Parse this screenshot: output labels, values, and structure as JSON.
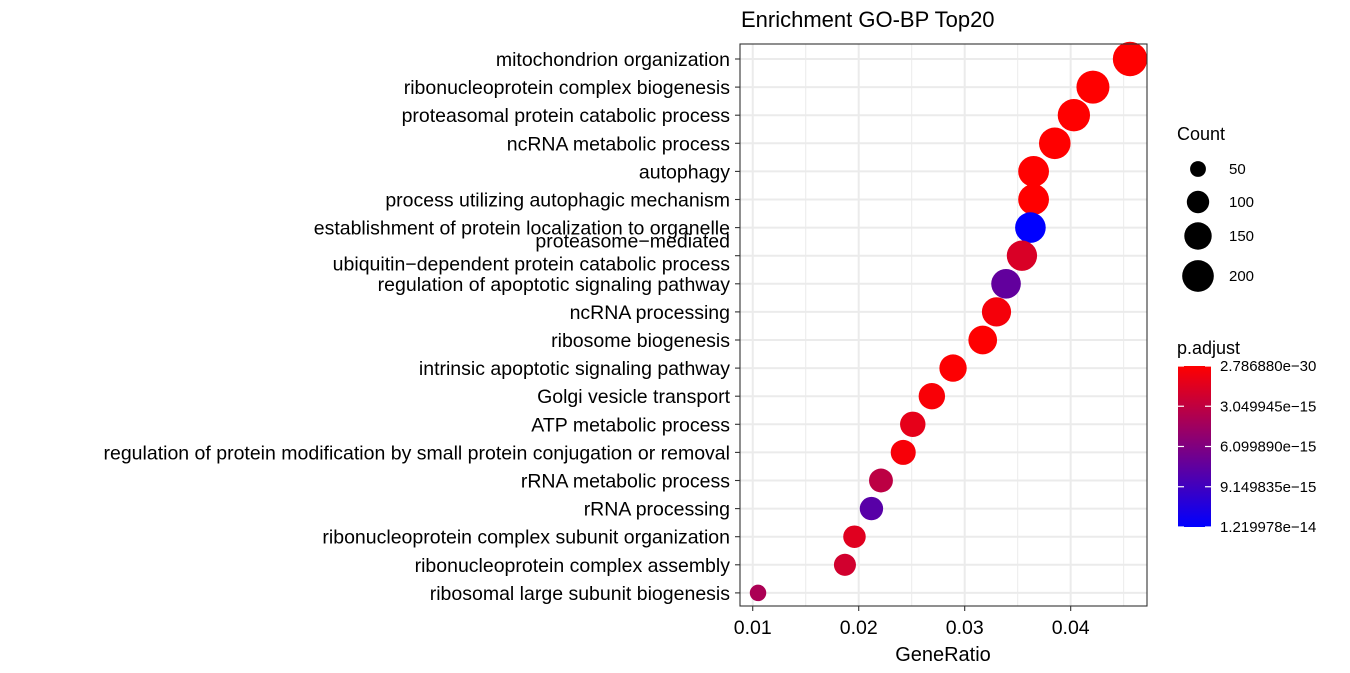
{
  "chart_data": {
    "type": "scatter",
    "title": "Enrichment GO-BP Top20",
    "xlabel": "GeneRatio",
    "ylabel": "",
    "xlim": [
      0.0088,
      0.0472
    ],
    "xticks": [
      "0.01",
      "0.02",
      "0.03",
      "0.04"
    ],
    "grid": true,
    "legend_position": "right",
    "categories": [
      "mitochondrion organization",
      "ribonucleoprotein complex biogenesis",
      "proteasomal protein catabolic process",
      "ncRNA metabolic process",
      "autophagy",
      "process utilizing autophagic mechanism",
      "establishment of protein localization to organelle",
      "proteasome−mediated\nubiquitin−dependent protein catabolic process",
      "regulation of apoptotic signaling pathway",
      "ncRNA processing",
      "ribosome biogenesis",
      "intrinsic apoptotic signaling pathway",
      "Golgi vesicle transport",
      "ATP metabolic process",
      "regulation of protein modification by small protein conjugation or removal",
      "rRNA metabolic process",
      "rRNA processing",
      "ribonucleoprotein complex subunit organization",
      "ribonucleoprotein complex assembly",
      "ribosomal large subunit biogenesis"
    ],
    "points": [
      {
        "term": "mitochondrion organization",
        "gene_ratio": 0.0456,
        "count": 236,
        "p_adjust": 2.8e-30
      },
      {
        "term": "ribonucleoprotein complex biogenesis",
        "gene_ratio": 0.0421,
        "count": 217,
        "p_adjust": 5e-25
      },
      {
        "term": "proteasomal protein catabolic process",
        "gene_ratio": 0.0403,
        "count": 208,
        "p_adjust": 3e-22
      },
      {
        "term": "ncRNA metabolic process",
        "gene_ratio": 0.0385,
        "count": 199,
        "p_adjust": 1e-20
      },
      {
        "term": "autophagy",
        "gene_ratio": 0.0365,
        "count": 189,
        "p_adjust": 1e-19
      },
      {
        "term": "process utilizing autophagic mechanism",
        "gene_ratio": 0.0365,
        "count": 189,
        "p_adjust": 1e-19
      },
      {
        "term": "establishment of protein localization to organelle",
        "gene_ratio": 0.0362,
        "count": 187,
        "p_adjust": 1.22e-14
      },
      {
        "term": "proteasome-mediated ubiquitin-dependent protein catabolic process",
        "gene_ratio": 0.0354,
        "count": 183,
        "p_adjust": 1.8e-15
      },
      {
        "term": "regulation of apoptotic signaling pathway",
        "gene_ratio": 0.0339,
        "count": 175,
        "p_adjust": 7.5e-15
      },
      {
        "term": "ncRNA processing",
        "gene_ratio": 0.033,
        "count": 170,
        "p_adjust": 5e-16
      },
      {
        "term": "ribosome biogenesis",
        "gene_ratio": 0.0317,
        "count": 164,
        "p_adjust": 5e-17
      },
      {
        "term": "intrinsic apoptotic signaling pathway",
        "gene_ratio": 0.0289,
        "count": 149,
        "p_adjust": 1e-16
      },
      {
        "term": "Golgi vesicle transport",
        "gene_ratio": 0.0269,
        "count": 139,
        "p_adjust": 3e-16
      },
      {
        "term": "ATP metabolic process",
        "gene_ratio": 0.0251,
        "count": 129,
        "p_adjust": 1.2e-15
      },
      {
        "term": "regulation of protein modification by small protein conjugation or removal",
        "gene_ratio": 0.0242,
        "count": 125,
        "p_adjust": 4e-16
      },
      {
        "term": "rRNA metabolic process",
        "gene_ratio": 0.0221,
        "count": 114,
        "p_adjust": 3.2e-15
      },
      {
        "term": "rRNA processing",
        "gene_ratio": 0.0212,
        "count": 109,
        "p_adjust": 8e-15
      },
      {
        "term": "ribonucleoprotein complex subunit organization",
        "gene_ratio": 0.0196,
        "count": 101,
        "p_adjust": 1.5e-15
      },
      {
        "term": "ribonucleoprotein complex assembly",
        "gene_ratio": 0.0187,
        "count": 97,
        "p_adjust": 2.2e-15
      },
      {
        "term": "ribosomal large subunit biogenesis",
        "gene_ratio": 0.0105,
        "count": 54,
        "p_adjust": 4e-15
      }
    ],
    "size_legend": {
      "title": "Count",
      "entries": [
        50,
        100,
        150,
        200
      ],
      "labels": [
        "50",
        "100",
        "150",
        "200"
      ]
    },
    "color_legend": {
      "title": "p.adjust",
      "low_color": "#ff0000",
      "high_color": "#0000ff",
      "min": 2.78688e-30,
      "max": 1.219978e-14,
      "labels": [
        "2.786880e−30",
        "3.049945e−15",
        "6.099890e−15",
        "9.149835e−15",
        "1.219978e−14"
      ]
    },
    "colors": {
      "grid": "#ebebeb",
      "panel_border": "#333333",
      "axis_text": "#000000"
    }
  }
}
